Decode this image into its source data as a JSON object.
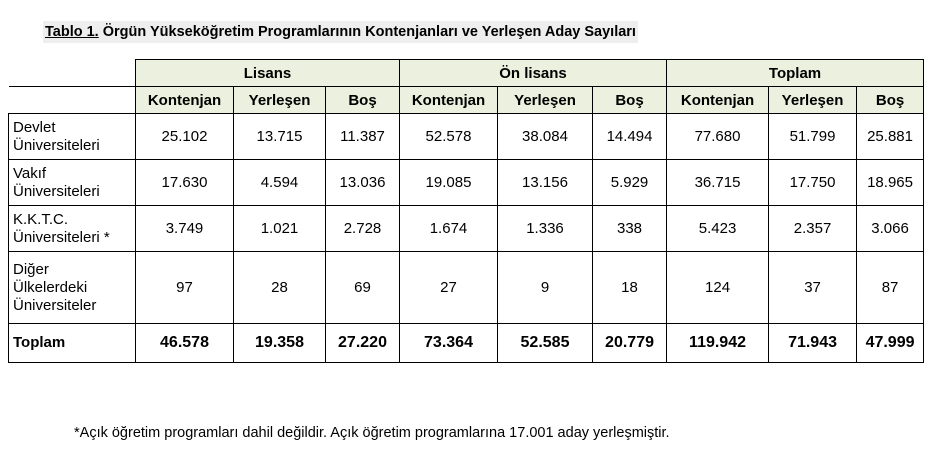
{
  "caption": {
    "label": "Tablo 1.",
    "text": " Örgün Yükseköğretim Programlarının Kontenjanları ve Yerleşen Aday Sayıları"
  },
  "groups": [
    "Lisans",
    "Ön lisans",
    "Toplam"
  ],
  "subheaders": [
    "Kontenjan",
    "Yerleşen",
    "Boş"
  ],
  "rows": [
    {
      "label_lines": [
        "Devlet",
        "Üniversiteleri"
      ],
      "values": [
        "25.102",
        "13.715",
        "11.387",
        "52.578",
        "38.084",
        "14.494",
        "77.680",
        "51.799",
        "25.881"
      ]
    },
    {
      "label_lines": [
        "Vakıf",
        "Üniversiteleri"
      ],
      "values": [
        "17.630",
        "4.594",
        "13.036",
        "19.085",
        "13.156",
        "5.929",
        "36.715",
        "17.750",
        "18.965"
      ]
    },
    {
      "label_lines": [
        "K.K.T.C.",
        "Üniversiteleri *"
      ],
      "values": [
        "3.749",
        "1.021",
        "2.728",
        "1.674",
        "1.336",
        "338",
        "5.423",
        "2.357",
        "3.066"
      ]
    },
    {
      "label_lines": [
        "Diğer",
        "Ülkelerdeki",
        "Üniversiteler"
      ],
      "values": [
        "97",
        "28",
        "69",
        "27",
        "9",
        "18",
        "124",
        "37",
        "87"
      ]
    }
  ],
  "total": {
    "label": "Toplam",
    "values": [
      "46.578",
      "19.358",
      "27.220",
      "73.364",
      "52.585",
      "20.779",
      "119.942",
      "71.943",
      "47.999"
    ]
  },
  "footnote": "*Açık öğretim programları dahil değildir. Açık öğretim programlarına 17.001 aday yerleşmiştir.",
  "colors": {
    "header_bg": "#ebf1de",
    "caption_bg": "#eeeeee"
  }
}
